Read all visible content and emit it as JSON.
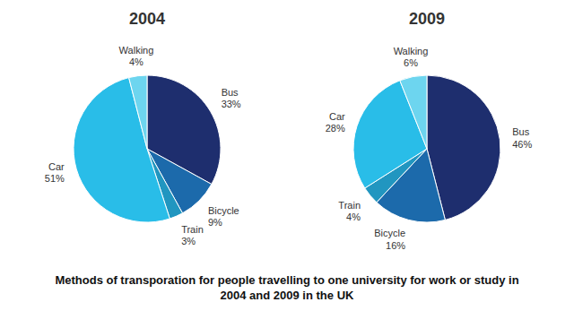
{
  "chart_data": [
    {
      "type": "pie",
      "title": "2004",
      "categories": [
        "Bus",
        "Bicycle",
        "Train",
        "Car",
        "Walking"
      ],
      "values": [
        33,
        9,
        3,
        51,
        4
      ],
      "value_labels": [
        "33%",
        "9%",
        "3%",
        "51%",
        "4%"
      ],
      "colors": [
        "#1e2e6e",
        "#1c6aab",
        "#2196c0",
        "#29bde8",
        "#6dd5ef"
      ],
      "data_labels": true
    },
    {
      "type": "pie",
      "title": "2009",
      "categories": [
        "Bus",
        "Bicycle",
        "Train",
        "Car",
        "Walking"
      ],
      "values": [
        46,
        16,
        4,
        28,
        6
      ],
      "value_labels": [
        "46%",
        "16%",
        "4%",
        "28%",
        "6%"
      ],
      "colors": [
        "#1e2e6e",
        "#1c6aab",
        "#2196c0",
        "#29bde8",
        "#6dd5ef"
      ],
      "data_labels": true
    }
  ],
  "caption": "Methods of transporation for people travelling to one university for work or study in\n2004 and 2009 in the UK"
}
